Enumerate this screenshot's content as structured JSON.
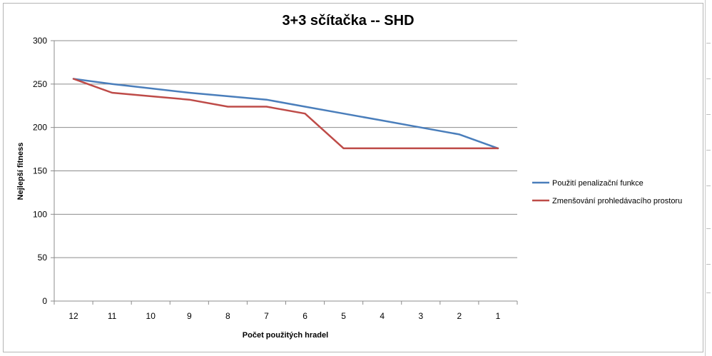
{
  "chart_data": {
    "type": "line",
    "title": "3+3 sčítačka -- SHD",
    "xlabel": "Počet použitých  hradel",
    "ylabel": "Nejlepší fitness",
    "categories": [
      "12",
      "11",
      "10",
      "9",
      "8",
      "7",
      "6",
      "5",
      "4",
      "3",
      "2",
      "1"
    ],
    "ylim": [
      0,
      300
    ],
    "yticks": [
      0,
      50,
      100,
      150,
      200,
      250,
      300
    ],
    "grid": true,
    "legend": "right",
    "series": [
      {
        "name": "Použití penalizační funkce",
        "color": "#4a7ebb",
        "values": [
          256,
          250,
          245,
          240,
          236,
          232,
          224,
          216,
          208,
          200,
          192,
          176
        ]
      },
      {
        "name": "Zmenšování prohledávacího prostoru",
        "color": "#be4b48",
        "values": [
          256,
          240,
          236,
          232,
          224,
          224,
          216,
          176,
          176,
          176,
          176,
          176
        ]
      }
    ]
  }
}
